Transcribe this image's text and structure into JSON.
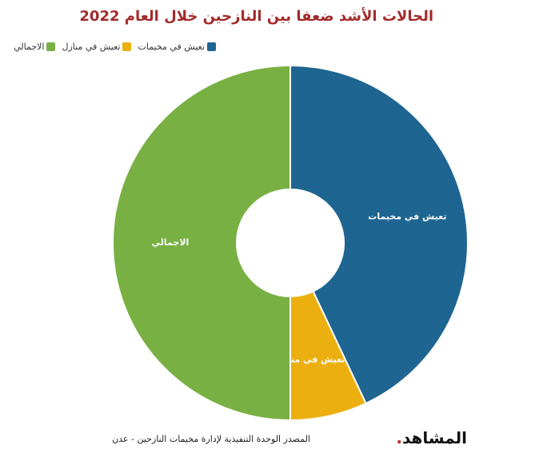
{
  "chart_data": {
    "type": "pie",
    "title": "الحالات الأشد ضعفا بين النازحين خلال العام 2022",
    "categories": [
      "تعيش في مخيمات",
      "تعيش في منازل",
      "الاجمالي"
    ],
    "series": [
      {
        "values": [
          43,
          7,
          50
        ],
        "colors": [
          "#1f6591",
          "#ebb010",
          "#79b044"
        ]
      }
    ],
    "legend": "top-left",
    "donut": true
  },
  "footer": {
    "source": "المصدر الوحدة التنفيذية لإدارة مخيمات النازحين - عدن",
    "logo": "المشاهد"
  }
}
